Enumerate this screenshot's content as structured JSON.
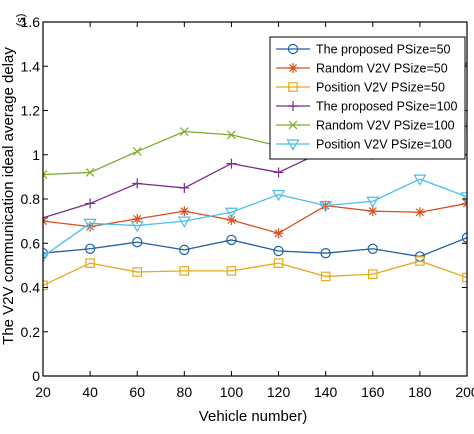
{
  "chart_data": {
    "type": "line",
    "title": "",
    "xlabel": "Vehicle number)",
    "ylabel": "The V2V communication ideal average delay",
    "ylabel_unit": "(s)",
    "x": [
      20,
      40,
      60,
      80,
      100,
      120,
      140,
      160,
      180,
      200
    ],
    "xlim": [
      20,
      200
    ],
    "ylim": [
      0,
      1.6
    ],
    "xticks": [
      "20",
      "40",
      "60",
      "80",
      "100",
      "120",
      "140",
      "160",
      "180",
      "200"
    ],
    "yticks": [
      "0",
      "0.2",
      "0.4",
      "0.6",
      "0.8",
      "1",
      "1.2",
      "1.4",
      "1.6"
    ],
    "grid": false,
    "legend_position": "top-right",
    "series": [
      {
        "name": "The proposed PSize=50",
        "color": "#1f5fa8",
        "marker": "circle",
        "values": [
          0.555,
          0.575,
          0.605,
          0.57,
          0.615,
          0.565,
          0.555,
          0.575,
          0.54,
          0.625
        ]
      },
      {
        "name": "Random V2V PSize=50",
        "color": "#d9501e",
        "marker": "asterisk",
        "values": [
          0.7,
          0.675,
          0.71,
          0.745,
          0.705,
          0.645,
          0.77,
          0.745,
          0.74,
          0.78
        ]
      },
      {
        "name": "Position V2V PSize=50",
        "color": "#e5a91a",
        "marker": "square",
        "values": [
          0.41,
          0.51,
          0.47,
          0.475,
          0.475,
          0.51,
          0.45,
          0.46,
          0.52,
          0.445
        ]
      },
      {
        "name": "The proposed PSize=100",
        "color": "#7c2a8e",
        "marker": "plus",
        "values": [
          0.715,
          0.78,
          0.87,
          0.85,
          0.96,
          0.92,
          1.02,
          1.0,
          1.09,
          1.13
        ]
      },
      {
        "name": "Random V2V PSize=100",
        "color": "#78ad2e",
        "marker": "x",
        "values": [
          0.91,
          0.92,
          1.015,
          1.105,
          1.09,
          1.04,
          1.15,
          1.2,
          1.38,
          1.41
        ]
      },
      {
        "name": "Position V2V PSize=100",
        "color": "#4bbfe8",
        "marker": "triangle-down",
        "values": [
          0.54,
          0.69,
          0.68,
          0.7,
          0.74,
          0.82,
          0.77,
          0.79,
          0.89,
          0.81
        ]
      }
    ]
  }
}
